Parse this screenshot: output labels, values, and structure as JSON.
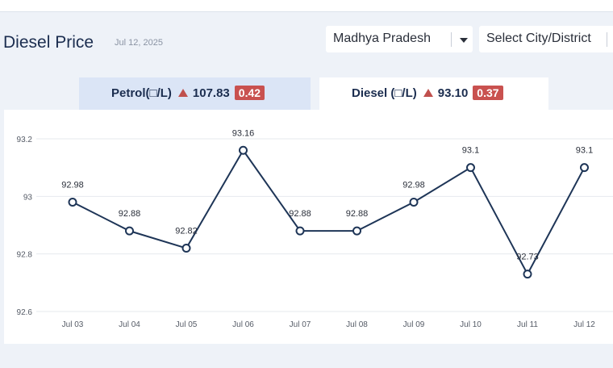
{
  "header": {
    "title": "Diesel Price",
    "date": "Jul 12, 2025",
    "state_select": "Madhya Pradesh",
    "city_select": "Select City/District"
  },
  "tabs": {
    "petrol": {
      "label": "Petrol(□/L)",
      "price": "107.83",
      "change": "0.42"
    },
    "diesel": {
      "label": "Diesel (□/L)",
      "price": "93.10",
      "change": "0.37"
    }
  },
  "colors": {
    "line": "#1e3557",
    "badge": "#c9514f",
    "up_arrow": "#c0504d",
    "active_tab": "#ffffff",
    "inactive_tab": "#dbe5f6"
  },
  "chart_data": {
    "type": "line",
    "categories": [
      "Jul 03",
      "Jul 04",
      "Jul 05",
      "Jul 06",
      "Jul 07",
      "Jul 08",
      "Jul 09",
      "Jul 10",
      "Jul 11",
      "Jul 12"
    ],
    "series": [
      {
        "values": [
          92.98,
          92.88,
          92.82,
          93.16,
          92.88,
          92.88,
          92.98,
          93.1,
          92.73,
          93.1
        ],
        "labels": [
          "92.98",
          "92.88",
          "92.82",
          "93.16",
          "92.88",
          "92.88",
          "92.98",
          "93.1",
          "92.73",
          "93.1"
        ]
      }
    ],
    "yticks": [
      "93.2",
      "93",
      "92.8",
      "92.6"
    ],
    "ytick_values": [
      93.2,
      93.0,
      92.8,
      92.6
    ],
    "ylim": [
      92.6,
      93.2
    ],
    "grid": true,
    "legend": "none"
  }
}
